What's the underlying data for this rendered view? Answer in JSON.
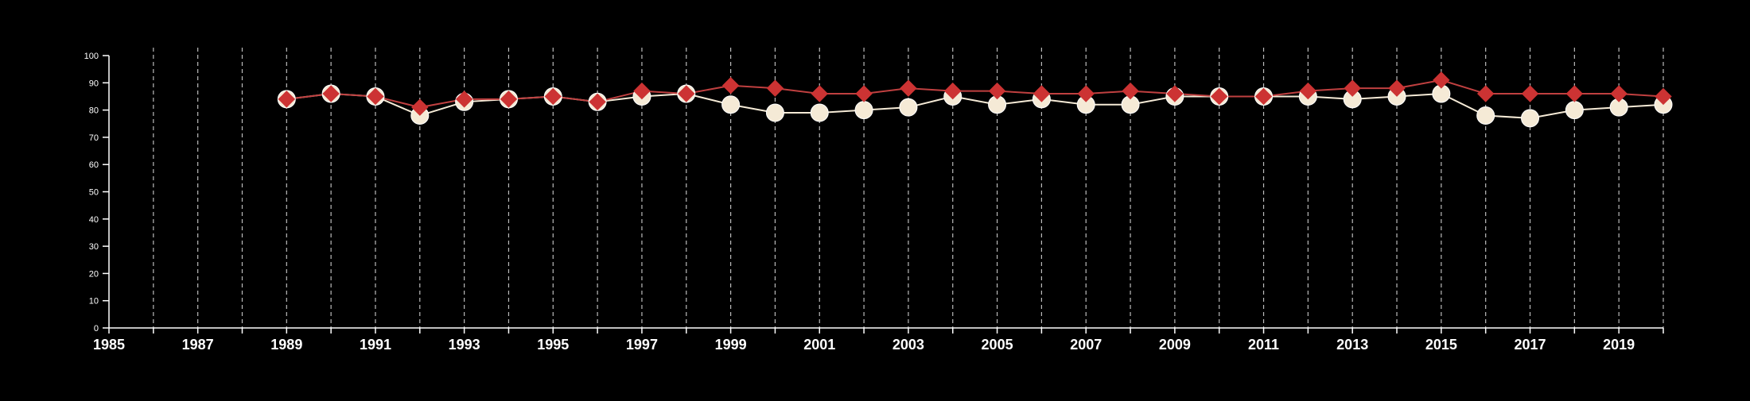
{
  "colors": {
    "background": "#000000",
    "axis": "#ffffff",
    "grid": "#bbbbbb",
    "series_light": "#f5ead6",
    "series_red": "#cc3333",
    "series_red_line": "#c04040"
  },
  "chart_data": {
    "type": "line",
    "title": "",
    "xlabel": "",
    "ylabel": "",
    "xlim": [
      1985,
      2020
    ],
    "ylim": [
      0,
      100
    ],
    "grid": "vertical dashed",
    "legend": "none",
    "x_ticks": [
      "1985",
      "1987",
      "1989",
      "1991",
      "1993",
      "1995",
      "1997",
      "1999",
      "2001",
      "2003",
      "2005",
      "2007",
      "2009",
      "2011",
      "2013",
      "2015",
      "2017",
      "2019"
    ],
    "y_ticks": [
      "0",
      "10",
      "20",
      "30",
      "40",
      "50",
      "60",
      "70",
      "80",
      "90",
      "100"
    ],
    "x": [
      1989,
      1990,
      1991,
      1992,
      1993,
      1994,
      1995,
      1996,
      1997,
      1998,
      1999,
      2000,
      2001,
      2002,
      2003,
      2004,
      2005,
      2006,
      2007,
      2008,
      2009,
      2010,
      2011,
      2012,
      2013,
      2014,
      2015,
      2016,
      2017,
      2018,
      2019,
      2020
    ],
    "series": [
      {
        "marker": "circle",
        "color": "#f5ead6",
        "values": [
          84,
          86,
          85,
          78,
          83,
          84,
          85,
          83,
          85,
          86,
          82,
          79,
          79,
          80,
          81,
          85,
          82,
          84,
          82,
          82,
          85,
          85,
          85,
          85,
          84,
          85,
          86,
          78,
          77,
          80,
          81,
          82
        ]
      },
      {
        "marker": "diamond",
        "color": "#cc3333",
        "values": [
          84,
          86,
          85,
          81,
          84,
          84,
          85,
          83,
          87,
          86,
          89,
          88,
          86,
          86,
          88,
          87,
          87,
          86,
          86,
          87,
          86,
          85,
          85,
          87,
          88,
          88,
          91,
          86,
          86,
          86,
          86,
          85
        ]
      }
    ]
  }
}
